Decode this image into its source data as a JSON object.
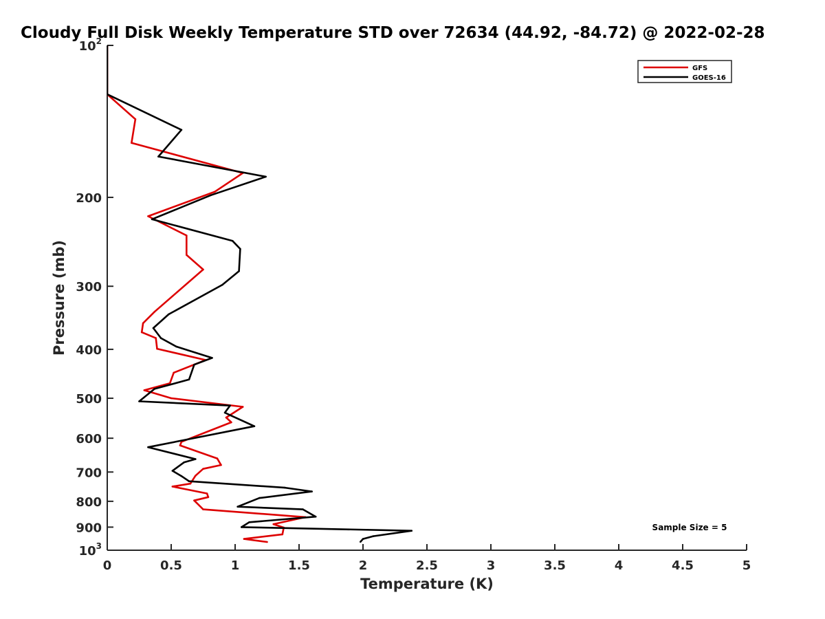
{
  "chart_data": {
    "type": "line",
    "title": "Cloudy Full Disk Weekly Temperature STD over 72634 (44.92, -84.72) @ 2022-02-28",
    "xlabel": "Temperature (K)",
    "ylabel": "Pressure (mb)",
    "xlim": [
      0,
      5
    ],
    "ylim": [
      100,
      1000
    ],
    "y_scale": "log",
    "y_reversed": true,
    "x_ticks": [
      "0",
      "0.5",
      "1",
      "1.5",
      "2",
      "2.5",
      "3",
      "3.5",
      "4",
      "4.5",
      "5"
    ],
    "y_ticks": [
      {
        "value": 100,
        "label": "10",
        "sup": "2"
      },
      {
        "value": 200,
        "label": "200"
      },
      {
        "value": 300,
        "label": "300"
      },
      {
        "value": 400,
        "label": "400"
      },
      {
        "value": 500,
        "label": "500"
      },
      {
        "value": 600,
        "label": "600"
      },
      {
        "value": 700,
        "label": "700"
      },
      {
        "value": 800,
        "label": "800"
      },
      {
        "value": 900,
        "label": "900"
      },
      {
        "value": 1000,
        "label": "10",
        "sup": "3"
      }
    ],
    "grid": false,
    "legend_position": "top-right",
    "annotation": "Sample Size = 5",
    "series": [
      {
        "name": "GFS",
        "color": "#dd0000",
        "points": [
          [
            0,
            100
          ],
          [
            0,
            125
          ],
          [
            0.22,
            140
          ],
          [
            0.19,
            156
          ],
          [
            1.06,
            179
          ],
          [
            0.84,
            195
          ],
          [
            0.32,
            218
          ],
          [
            0.62,
            238
          ],
          [
            0.62,
            260
          ],
          [
            0.75,
            278
          ],
          [
            0.37,
            337
          ],
          [
            0.28,
            355
          ],
          [
            0.27,
            370
          ],
          [
            0.38,
            380
          ],
          [
            0.39,
            399
          ],
          [
            0.77,
            420
          ],
          [
            0.52,
            445
          ],
          [
            0.49,
            467
          ],
          [
            0.29,
            482
          ],
          [
            0.5,
            500
          ],
          [
            1.06,
            520
          ],
          [
            0.93,
            546
          ],
          [
            0.97,
            558
          ],
          [
            0.58,
            610
          ],
          [
            0.57,
            620
          ],
          [
            0.86,
            658
          ],
          [
            0.89,
            678
          ],
          [
            0.75,
            690
          ],
          [
            0.69,
            712
          ],
          [
            0.65,
            738
          ],
          [
            0.51,
            748
          ],
          [
            0.78,
            772
          ],
          [
            0.79,
            785
          ],
          [
            0.68,
            797
          ],
          [
            0.75,
            830
          ],
          [
            1.55,
            860
          ],
          [
            1.3,
            888
          ],
          [
            1.38,
            902
          ],
          [
            1.37,
            930
          ],
          [
            1.07,
            950
          ],
          [
            1.25,
            963
          ]
        ]
      },
      {
        "name": "GOES-16",
        "color": "#000000",
        "points": [
          [
            0,
            100
          ],
          [
            0,
            125
          ],
          [
            0.58,
            147
          ],
          [
            0.4,
            166
          ],
          [
            1.24,
            182
          ],
          [
            0.81,
            198
          ],
          [
            0.35,
            221
          ],
          [
            0.98,
            244
          ],
          [
            1.04,
            253
          ],
          [
            1.03,
            280
          ],
          [
            0.9,
            298
          ],
          [
            0.48,
            341
          ],
          [
            0.36,
            363
          ],
          [
            0.42,
            380
          ],
          [
            0.54,
            395
          ],
          [
            0.82,
            416
          ],
          [
            0.68,
            429
          ],
          [
            0.64,
            459
          ],
          [
            0.37,
            479
          ],
          [
            0.25,
            507
          ],
          [
            0.96,
            517
          ],
          [
            0.92,
            534
          ],
          [
            0.96,
            540
          ],
          [
            1.15,
            568
          ],
          [
            0.32,
            625
          ],
          [
            0.69,
            660
          ],
          [
            0.6,
            670
          ],
          [
            0.51,
            696
          ],
          [
            0.58,
            713
          ],
          [
            0.64,
            730
          ],
          [
            1.39,
            752
          ],
          [
            1.6,
            765
          ],
          [
            1.19,
            788
          ],
          [
            1.02,
            820
          ],
          [
            1.53,
            830
          ],
          [
            1.63,
            858
          ],
          [
            1.11,
            880
          ],
          [
            1.05,
            900
          ],
          [
            2.38,
            915
          ],
          [
            2.08,
            938
          ],
          [
            2.0,
            950
          ],
          [
            1.98,
            962
          ]
        ]
      }
    ]
  }
}
